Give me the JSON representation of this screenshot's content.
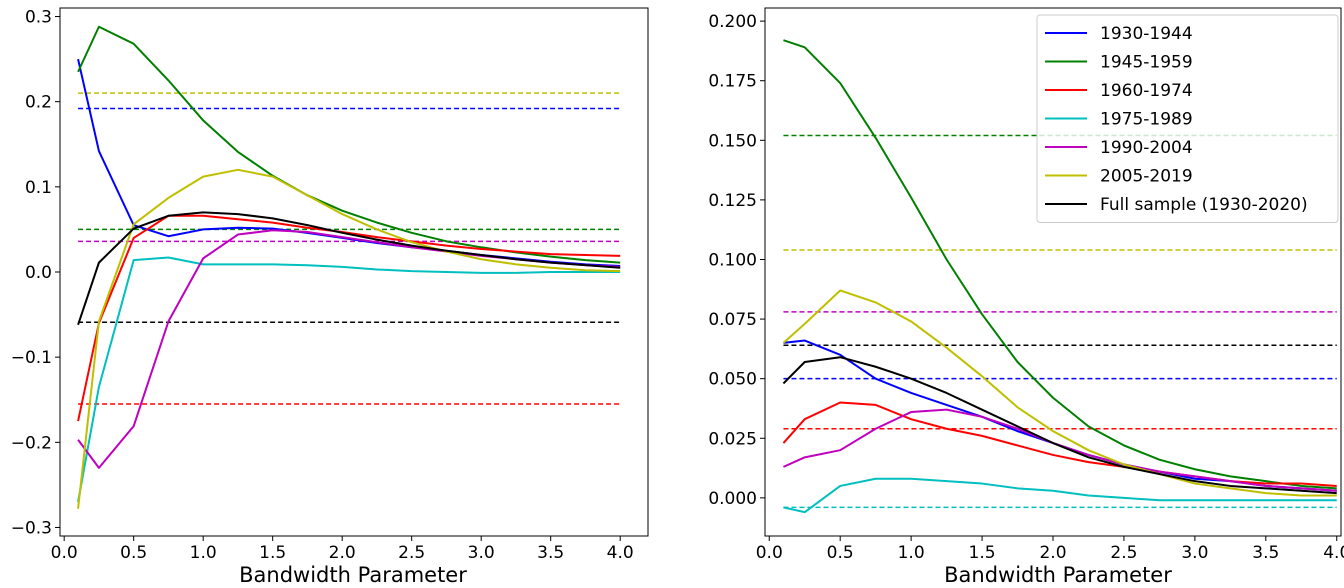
{
  "chart_data": [
    {
      "type": "line",
      "xlabel": "Bandwidth Parameter",
      "ylabel": "",
      "title": "",
      "xlim": [
        -0.03,
        4.2
      ],
      "ylim": [
        -0.31,
        0.31
      ],
      "xticks": [
        "0.0",
        "0.5",
        "1.0",
        "1.5",
        "2.0",
        "2.5",
        "3.0",
        "3.5",
        "4.0"
      ],
      "xtick_values": [
        0,
        0.5,
        1,
        1.5,
        2,
        2.5,
        3,
        3.5,
        4
      ],
      "yticks": [
        "−0.3",
        "−0.2",
        "−0.1",
        "0.0",
        "0.1",
        "0.2",
        "0.3"
      ],
      "ytick_values": [
        -0.3,
        -0.2,
        -0.1,
        0,
        0.1,
        0.2,
        0.3
      ],
      "x": [
        0.1,
        0.25,
        0.5,
        0.75,
        1.0,
        1.25,
        1.5,
        1.75,
        2.0,
        2.25,
        2.5,
        2.75,
        3.0,
        3.25,
        3.5,
        3.75,
        4.0
      ],
      "series": [
        {
          "name": "1930-1944",
          "color": "#0000ff",
          "values": [
            0.25,
            0.142,
            0.055,
            0.042,
            0.05,
            0.052,
            0.051,
            0.046,
            0.04,
            0.034,
            0.029,
            0.025,
            0.02,
            0.016,
            0.012,
            0.009,
            0.007
          ],
          "ref": 0.192
        },
        {
          "name": "1945-1959",
          "color": "#008000",
          "values": [
            0.235,
            0.288,
            0.268,
            0.225,
            0.178,
            0.141,
            0.113,
            0.09,
            0.072,
            0.058,
            0.046,
            0.036,
            0.029,
            0.023,
            0.018,
            0.014,
            0.011
          ],
          "ref": 0.05
        },
        {
          "name": "1960-1974",
          "color": "#ff0000",
          "values": [
            -0.175,
            -0.06,
            0.04,
            0.066,
            0.066,
            0.062,
            0.058,
            0.052,
            0.047,
            0.041,
            0.036,
            0.031,
            0.027,
            0.024,
            0.021,
            0.02,
            0.019
          ],
          "ref": -0.155
        },
        {
          "name": "1975-1989",
          "color": "#00bfbf",
          "values": [
            -0.27,
            -0.135,
            0.014,
            0.017,
            0.009,
            0.009,
            0.009,
            0.008,
            0.006,
            0.003,
            0.001,
            0.0,
            -0.001,
            -0.001,
            0.0,
            0.0,
            0.0
          ],
          "ref": null
        },
        {
          "name": "1990-2004",
          "color": "#bf00bf",
          "values": [
            -0.197,
            -0.23,
            -0.181,
            -0.058,
            0.016,
            0.044,
            0.049,
            0.047,
            0.041,
            0.035,
            0.029,
            0.024,
            0.019,
            0.015,
            0.011,
            0.008,
            0.006
          ],
          "ref": 0.036
        },
        {
          "name": "2005-2019",
          "color": "#bfbf00",
          "values": [
            -0.278,
            -0.058,
            0.056,
            0.087,
            0.112,
            0.12,
            0.112,
            0.09,
            0.068,
            0.05,
            0.035,
            0.024,
            0.015,
            0.009,
            0.005,
            0.002,
            0.001
          ],
          "ref": 0.21
        },
        {
          "name": "Full sample (1930-2020)",
          "color": "#000000",
          "values": [
            -0.062,
            0.011,
            0.051,
            0.066,
            0.07,
            0.068,
            0.063,
            0.055,
            0.046,
            0.038,
            0.031,
            0.025,
            0.02,
            0.015,
            0.011,
            0.008,
            0.005
          ],
          "ref": -0.059
        }
      ]
    },
    {
      "type": "line",
      "xlabel": "Bandwidth Parameter",
      "ylabel": "",
      "title": "",
      "xlim": [
        -0.03,
        4.03
      ],
      "ylim": [
        -0.016,
        0.2055
      ],
      "xticks": [
        "0.0",
        "0.5",
        "1.0",
        "1.5",
        "2.0",
        "2.5",
        "3.0",
        "3.5",
        "4.0"
      ],
      "xtick_values": [
        0,
        0.5,
        1,
        1.5,
        2,
        2.5,
        3,
        3.5,
        4
      ],
      "yticks": [
        "0.000",
        "0.025",
        "0.050",
        "0.075",
        "0.100",
        "0.125",
        "0.150",
        "0.175",
        "0.200"
      ],
      "ytick_values": [
        0,
        0.025,
        0.05,
        0.075,
        0.1,
        0.125,
        0.15,
        0.175,
        0.2
      ],
      "legend": "top-right",
      "x": [
        0.1,
        0.25,
        0.5,
        0.75,
        1.0,
        1.25,
        1.5,
        1.75,
        2.0,
        2.25,
        2.5,
        2.75,
        3.0,
        3.25,
        3.5,
        3.75,
        4.0
      ],
      "series": [
        {
          "name": "1930-1944",
          "color": "#0000ff",
          "values": [
            0.065,
            0.066,
            0.06,
            0.05,
            0.044,
            0.039,
            0.034,
            0.028,
            0.023,
            0.018,
            0.014,
            0.011,
            0.008,
            0.007,
            0.005,
            0.004,
            0.003
          ],
          "ref": 0.05
        },
        {
          "name": "1945-1959",
          "color": "#008000",
          "values": [
            0.192,
            0.189,
            0.174,
            0.151,
            0.126,
            0.1,
            0.077,
            0.057,
            0.042,
            0.03,
            0.022,
            0.016,
            0.012,
            0.009,
            0.007,
            0.005,
            0.004
          ],
          "ref": 0.152
        },
        {
          "name": "1960-1974",
          "color": "#ff0000",
          "values": [
            0.023,
            0.033,
            0.04,
            0.039,
            0.033,
            0.029,
            0.026,
            0.022,
            0.018,
            0.015,
            0.013,
            0.011,
            0.009,
            0.007,
            0.006,
            0.006,
            0.005
          ],
          "ref": 0.029
        },
        {
          "name": "1975-1989",
          "color": "#00bfbf",
          "values": [
            -0.004,
            -0.006,
            0.005,
            0.008,
            0.008,
            0.007,
            0.006,
            0.004,
            0.003,
            0.001,
            0.0,
            -0.001,
            -0.001,
            -0.001,
            -0.001,
            -0.001,
            -0.001
          ],
          "ref": -0.004
        },
        {
          "name": "1990-2004",
          "color": "#bf00bf",
          "values": [
            0.013,
            0.017,
            0.02,
            0.029,
            0.036,
            0.037,
            0.034,
            0.029,
            0.023,
            0.018,
            0.014,
            0.011,
            0.009,
            0.007,
            0.005,
            0.004,
            0.003
          ],
          "ref": 0.078
        },
        {
          "name": "2005-2019",
          "color": "#bfbf00",
          "values": [
            0.065,
            0.073,
            0.087,
            0.082,
            0.074,
            0.063,
            0.051,
            0.038,
            0.028,
            0.02,
            0.014,
            0.01,
            0.006,
            0.004,
            0.002,
            0.001,
            0.001
          ],
          "ref": 0.104
        },
        {
          "name": "Full sample (1930-2020)",
          "color": "#000000",
          "values": [
            0.048,
            0.057,
            0.059,
            0.055,
            0.05,
            0.044,
            0.037,
            0.03,
            0.023,
            0.017,
            0.013,
            0.01,
            0.007,
            0.005,
            0.004,
            0.003,
            0.002
          ],
          "ref": 0.064
        }
      ]
    }
  ]
}
